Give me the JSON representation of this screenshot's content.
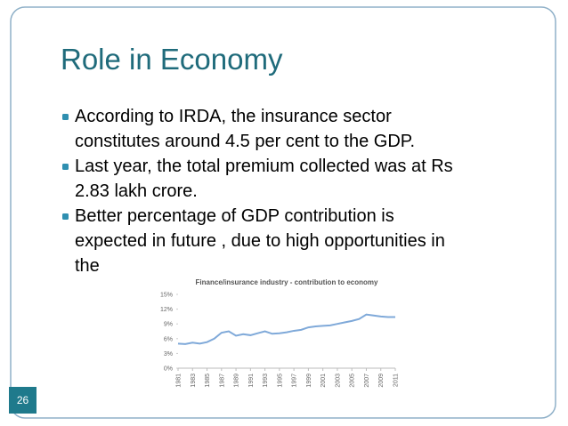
{
  "slide": {
    "title": "Role in Economy",
    "bullets": [
      {
        "lines": [
          "According to IRDA, the insurance sector",
          "constitutes around 4.5 per cent to the GDP."
        ]
      },
      {
        "lines": [
          "Last year, the total premium collected was at Rs",
          "2.83 lakh crore."
        ]
      },
      {
        "lines": [
          "Better percentage of GDP contribution is",
          "expected in future , due to high opportunities in",
          "the"
        ]
      }
    ],
    "page_number": "26"
  },
  "chart_data": {
    "type": "line",
    "title": "Finance/insurance industry - contribution to economy",
    "x": [
      1981,
      1982,
      1983,
      1984,
      1985,
      1986,
      1987,
      1988,
      1989,
      1990,
      1991,
      1992,
      1993,
      1994,
      1995,
      1996,
      1997,
      1998,
      1999,
      2000,
      2001,
      2002,
      2003,
      2004,
      2005,
      2006,
      2007,
      2008,
      2009,
      2010,
      2011
    ],
    "series": [
      {
        "color": "#7fa9d9",
        "values": [
          5.0,
          4.9,
          5.2,
          5.0,
          5.3,
          6.0,
          7.2,
          7.5,
          6.6,
          6.9,
          6.7,
          7.1,
          7.5,
          7.0,
          7.1,
          7.3,
          7.6,
          7.8,
          8.3,
          8.5,
          8.6,
          8.7,
          9.0,
          9.3,
          9.6,
          10.0,
          10.9,
          10.7,
          10.5,
          10.4,
          10.4
        ]
      }
    ],
    "xlim": [
      1981,
      2011
    ],
    "xticks": [
      1981,
      1983,
      1985,
      1987,
      1989,
      1991,
      1993,
      1995,
      1997,
      1999,
      2001,
      2003,
      2005,
      2007,
      2009,
      2011
    ],
    "ylim": [
      0,
      15
    ],
    "yticks": [
      {
        "value": 0,
        "label": "0%"
      },
      {
        "value": 3,
        "label": "3%"
      },
      {
        "value": 6,
        "label": "6%"
      },
      {
        "value": 9,
        "label": "9%"
      },
      {
        "value": 12,
        "label": "12%"
      },
      {
        "value": 15,
        "label": "15%"
      }
    ],
    "grid": false
  }
}
